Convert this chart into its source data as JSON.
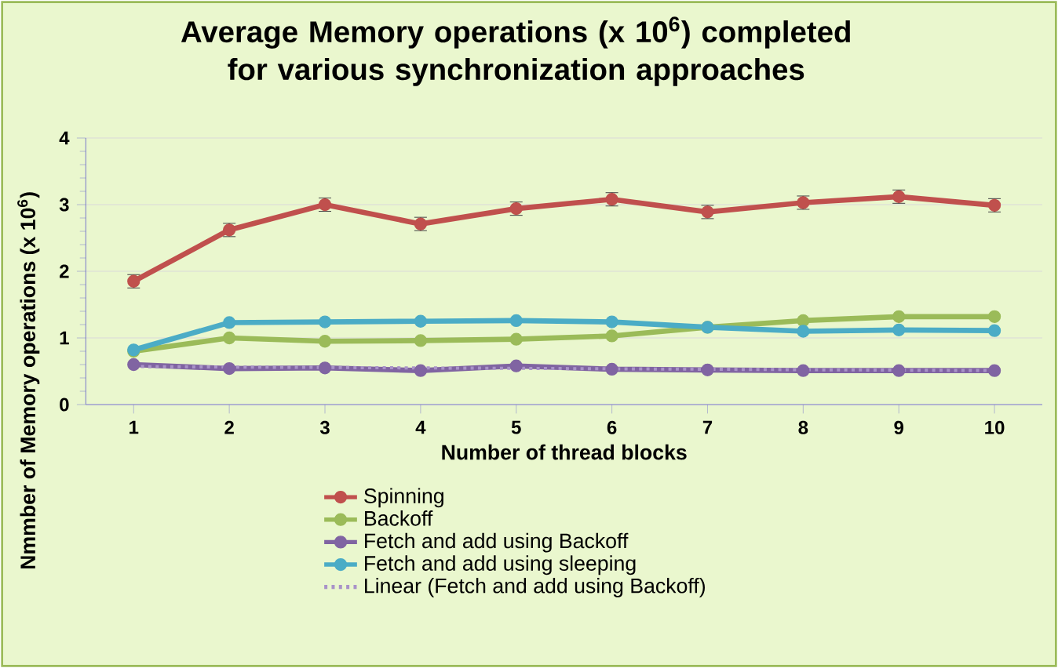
{
  "chart_data": {
    "type": "line",
    "title": "Average Memory operations (x 10$^{6}$) completed for various synchronization approaches",
    "xlabel": "Number of thread blocks",
    "ylabel": "Nmmber of Memory operations (x 10$^{6}$)",
    "x": [
      1,
      2,
      3,
      4,
      5,
      6,
      7,
      8,
      9,
      10
    ],
    "xlim": [
      0.5,
      10.5
    ],
    "xticks": [
      1,
      2,
      3,
      4,
      5,
      6,
      7,
      8,
      9,
      10
    ],
    "ylim": [
      0,
      4
    ],
    "yticks": [
      0,
      1,
      2,
      3,
      4
    ],
    "grid": "y",
    "legend": "bottom",
    "marker": "circle",
    "series": [
      {
        "name": "Spinning",
        "color": "#c0504d",
        "values": [
          1.85,
          2.62,
          3.0,
          2.71,
          2.94,
          3.08,
          2.89,
          3.03,
          3.12,
          2.99
        ],
        "errors": [
          0.1,
          0.1,
          0.1,
          0.1,
          0.1,
          0.1,
          0.1,
          0.1,
          0.1,
          0.1
        ]
      },
      {
        "name": "Backoff",
        "color": "#9bbb59",
        "values": [
          0.8,
          1.0,
          0.95,
          0.96,
          0.98,
          1.03,
          1.16,
          1.26,
          1.32,
          1.32
        ]
      },
      {
        "name": "Fetch and add using Backoff",
        "color": "#8064a2",
        "values": [
          0.6,
          0.54,
          0.55,
          0.51,
          0.58,
          0.53,
          0.52,
          0.51,
          0.51,
          0.51
        ]
      },
      {
        "name": "Fetch and add using sleeping",
        "color": "#4bacc6",
        "values": [
          0.82,
          1.23,
          1.24,
          1.25,
          1.26,
          1.24,
          1.16,
          1.1,
          1.12,
          1.11
        ]
      },
      {
        "name": "Linear (Fetch and add using Backoff)",
        "color": "#a993c8",
        "type": "line",
        "line_style": "dotted",
        "marker": "none",
        "x": [
          1,
          10
        ],
        "values": [
          0.57,
          0.51
        ]
      }
    ]
  }
}
